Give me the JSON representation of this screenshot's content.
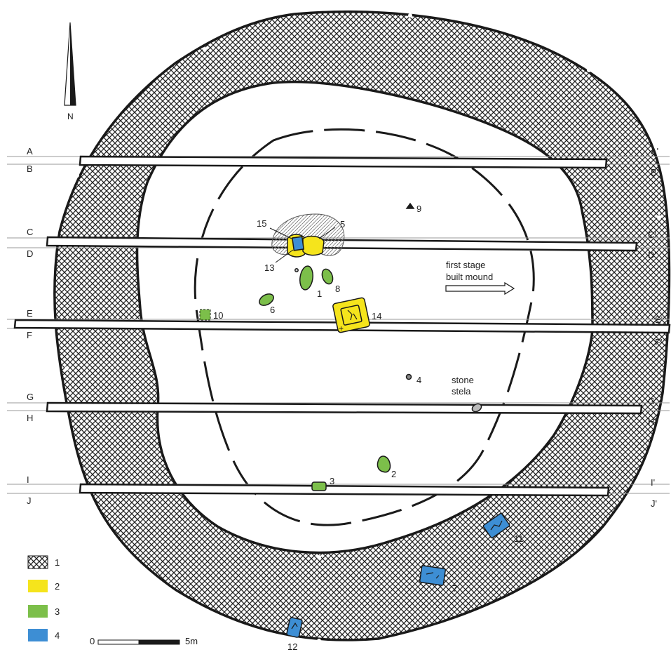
{
  "north_label": "N",
  "profile_lines": {
    "left": [
      "A",
      "B",
      "C",
      "D",
      "E",
      "F",
      "G",
      "H",
      "I",
      "J"
    ],
    "right": [
      "A'",
      "B'",
      "C'",
      "D'",
      "E'",
      "F'",
      "G'",
      "H'",
      "I'",
      "J'"
    ]
  },
  "features": [
    {
      "num": "1",
      "type": "3"
    },
    {
      "num": "2",
      "type": "3"
    },
    {
      "num": "3",
      "type": "3"
    },
    {
      "num": "4",
      "type": "stone"
    },
    {
      "num": "5",
      "type": "2"
    },
    {
      "num": "6",
      "type": "3"
    },
    {
      "num": "7",
      "type": "4"
    },
    {
      "num": "8",
      "type": "3"
    },
    {
      "num": "9",
      "type": "marker"
    },
    {
      "num": "10",
      "type": "3"
    },
    {
      "num": "11",
      "type": "4"
    },
    {
      "num": "12",
      "type": "4"
    },
    {
      "num": "13",
      "type": "2"
    },
    {
      "num": "14",
      "type": "2"
    },
    {
      "num": "15",
      "type": "pit"
    }
  ],
  "annotations": {
    "first_stage_line1": "first stage",
    "first_stage_line2": "built mound",
    "stone_stela_line1": "stone",
    "stone_stela_line2": "stela"
  },
  "legend": [
    {
      "label": "1",
      "pattern": "crosshatch"
    },
    {
      "label": "2",
      "color": "#f5e41c"
    },
    {
      "label": "3",
      "color": "#7cbf4a"
    },
    {
      "label": "4",
      "color": "#3d8ed4"
    }
  ],
  "scale_bar": {
    "start": "0",
    "end": "5m"
  },
  "colors": {
    "yellow": "#f5e41c",
    "green": "#7cbf4a",
    "blue": "#3d8ed4",
    "outline": "#1a1a1a"
  }
}
